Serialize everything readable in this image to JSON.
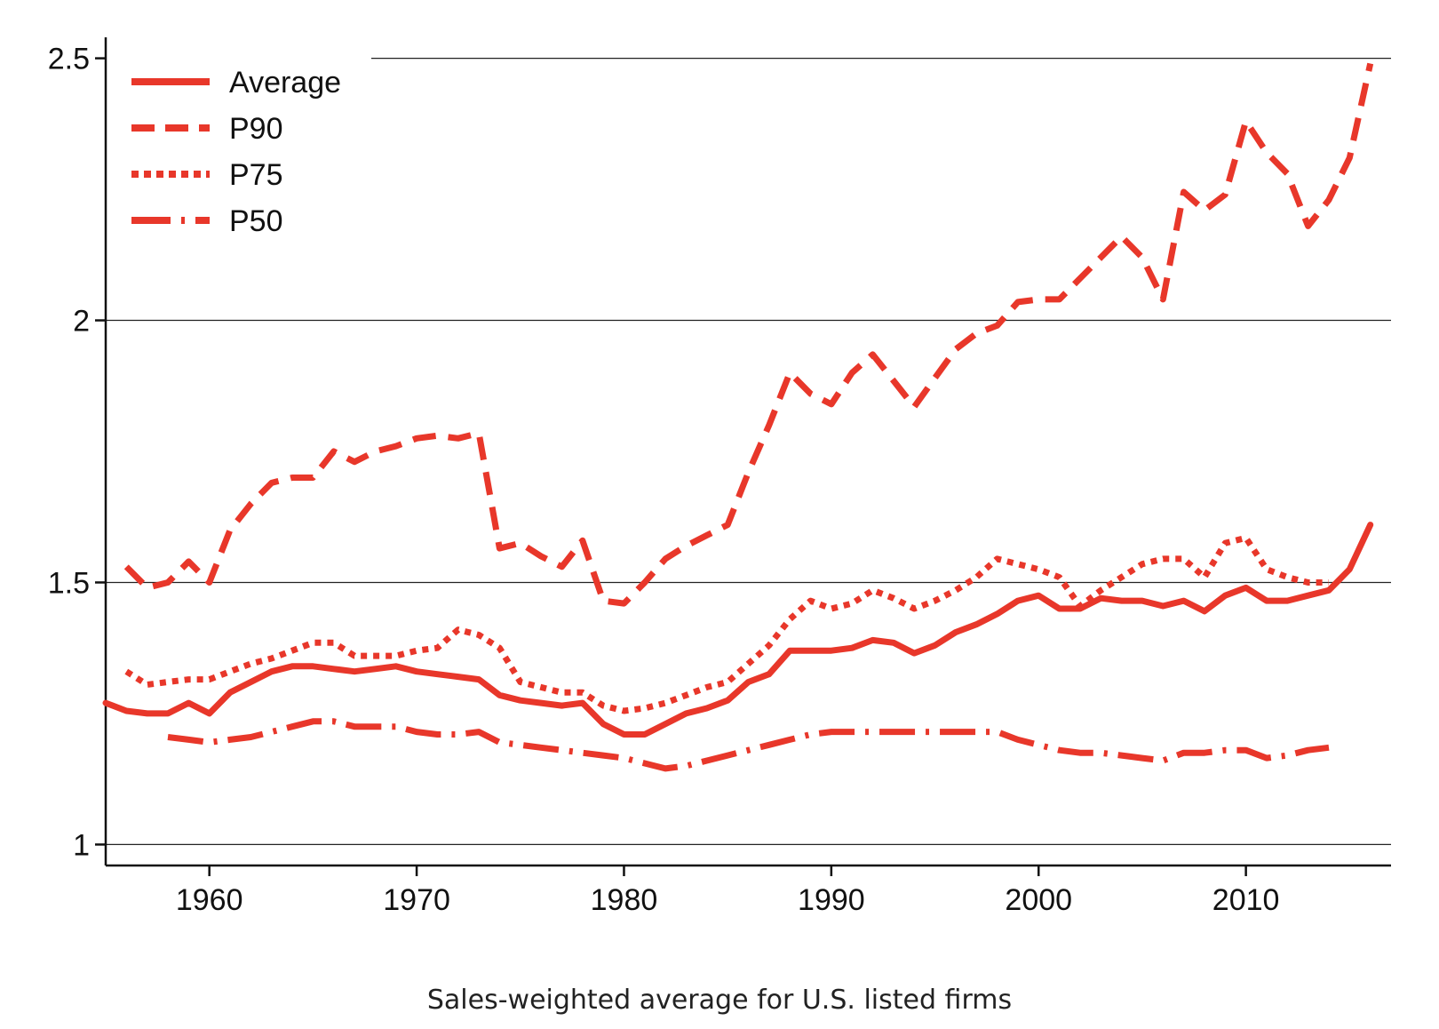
{
  "caption": "Sales-weighted average for U.S. listed firms",
  "chart_data": {
    "type": "line",
    "title": "",
    "xlabel": "",
    "ylabel": "",
    "xlim": [
      1955,
      2017
    ],
    "ylim": [
      0.96,
      2.54
    ],
    "x_ticks": [
      1960,
      1970,
      1980,
      1990,
      2000,
      2010
    ],
    "y_ticks": [
      1,
      1.5,
      2,
      2.5
    ],
    "y_tick_labels": [
      "1",
      "1.5",
      "2",
      "2.5"
    ],
    "grid": "horizontal",
    "legend_position": "top-left",
    "color": "#e8372a",
    "series": [
      {
        "name": "Average",
        "style": "solid",
        "x": [
          1955,
          1956,
          1957,
          1958,
          1959,
          1960,
          1961,
          1962,
          1963,
          1964,
          1965,
          1966,
          1967,
          1968,
          1969,
          1970,
          1971,
          1972,
          1973,
          1974,
          1975,
          1976,
          1977,
          1978,
          1979,
          1980,
          1981,
          1982,
          1983,
          1984,
          1985,
          1986,
          1987,
          1988,
          1989,
          1990,
          1991,
          1992,
          1993,
          1994,
          1995,
          1996,
          1997,
          1998,
          1999,
          2000,
          2001,
          2002,
          2003,
          2004,
          2005,
          2006,
          2007,
          2008,
          2009,
          2010,
          2011,
          2012,
          2013,
          2014,
          2015,
          2016
        ],
        "values": [
          1.27,
          1.255,
          1.25,
          1.25,
          1.27,
          1.25,
          1.29,
          1.31,
          1.33,
          1.34,
          1.34,
          1.335,
          1.33,
          1.335,
          1.34,
          1.33,
          1.325,
          1.32,
          1.315,
          1.285,
          1.275,
          1.27,
          1.265,
          1.27,
          1.23,
          1.21,
          1.21,
          1.23,
          1.25,
          1.26,
          1.275,
          1.31,
          1.325,
          1.37,
          1.37,
          1.37,
          1.375,
          1.39,
          1.385,
          1.365,
          1.38,
          1.405,
          1.42,
          1.44,
          1.465,
          1.475,
          1.45,
          1.45,
          1.47,
          1.465,
          1.465,
          1.455,
          1.465,
          1.445,
          1.475,
          1.49,
          1.465,
          1.465,
          1.475,
          1.485,
          1.525,
          1.61
        ]
      },
      {
        "name": "P90",
        "style": "dash",
        "x": [
          1956,
          1957,
          1958,
          1959,
          1960,
          1961,
          1962,
          1963,
          1964,
          1965,
          1966,
          1967,
          1968,
          1969,
          1970,
          1971,
          1972,
          1973,
          1974,
          1975,
          1976,
          1977,
          1978,
          1979,
          1980,
          1981,
          1982,
          1983,
          1984,
          1985,
          1986,
          1987,
          1988,
          1989,
          1990,
          1991,
          1992,
          1993,
          1994,
          1995,
          1996,
          1997,
          1998,
          1999,
          2000,
          2001,
          2002,
          2003,
          2004,
          2005,
          2006,
          2007,
          2008,
          2009,
          2010,
          2011,
          2012,
          2013,
          2014,
          2015,
          2016
        ],
        "values": [
          1.53,
          1.49,
          1.5,
          1.54,
          1.5,
          1.6,
          1.65,
          1.69,
          1.7,
          1.7,
          1.75,
          1.73,
          1.75,
          1.76,
          1.775,
          1.78,
          1.775,
          1.785,
          1.565,
          1.575,
          1.55,
          1.53,
          1.58,
          1.465,
          1.46,
          1.5,
          1.545,
          1.57,
          1.59,
          1.61,
          1.71,
          1.8,
          1.9,
          1.86,
          1.84,
          1.9,
          1.935,
          1.885,
          1.835,
          1.89,
          1.945,
          1.975,
          1.99,
          2.035,
          2.04,
          2.04,
          2.08,
          2.12,
          2.16,
          2.12,
          2.04,
          2.245,
          2.21,
          2.24,
          2.38,
          2.32,
          2.28,
          2.18,
          2.23,
          2.31,
          2.49
        ]
      },
      {
        "name": "P75",
        "style": "dot",
        "x": [
          1956,
          1957,
          1958,
          1959,
          1960,
          1961,
          1962,
          1963,
          1964,
          1965,
          1966,
          1967,
          1968,
          1969,
          1970,
          1971,
          1972,
          1973,
          1974,
          1975,
          1976,
          1977,
          1978,
          1979,
          1980,
          1981,
          1982,
          1983,
          1984,
          1985,
          1986,
          1987,
          1988,
          1989,
          1990,
          1991,
          1992,
          1993,
          1994,
          1995,
          1996,
          1997,
          1998,
          1999,
          2000,
          2001,
          2002,
          2003,
          2004,
          2005,
          2006,
          2007,
          2008,
          2009,
          2010,
          2011,
          2012,
          2013,
          2014
        ],
        "values": [
          1.33,
          1.305,
          1.31,
          1.315,
          1.315,
          1.33,
          1.345,
          1.355,
          1.37,
          1.385,
          1.385,
          1.36,
          1.36,
          1.36,
          1.37,
          1.375,
          1.41,
          1.4,
          1.375,
          1.31,
          1.3,
          1.29,
          1.29,
          1.265,
          1.255,
          1.26,
          1.27,
          1.285,
          1.3,
          1.31,
          1.345,
          1.38,
          1.43,
          1.465,
          1.45,
          1.46,
          1.485,
          1.47,
          1.45,
          1.465,
          1.485,
          1.51,
          1.545,
          1.535,
          1.525,
          1.51,
          1.455,
          1.485,
          1.51,
          1.535,
          1.545,
          1.545,
          1.51,
          1.575,
          1.585,
          1.525,
          1.51,
          1.5,
          1.5
        ]
      },
      {
        "name": "P50",
        "style": "dashdot",
        "x": [
          1958,
          1959,
          1960,
          1961,
          1962,
          1963,
          1964,
          1965,
          1966,
          1967,
          1968,
          1969,
          1970,
          1971,
          1972,
          1973,
          1974,
          1975,
          1976,
          1977,
          1978,
          1979,
          1980,
          1981,
          1982,
          1983,
          1984,
          1985,
          1986,
          1987,
          1988,
          1989,
          1990,
          1991,
          1992,
          1993,
          1994,
          1995,
          1996,
          1997,
          1998,
          1999,
          2000,
          2001,
          2002,
          2003,
          2004,
          2005,
          2006,
          2007,
          2008,
          2009,
          2010,
          2011,
          2012,
          2013,
          2014
        ],
        "values": [
          1.205,
          1.2,
          1.195,
          1.2,
          1.205,
          1.215,
          1.225,
          1.235,
          1.235,
          1.225,
          1.225,
          1.225,
          1.215,
          1.21,
          1.21,
          1.215,
          1.195,
          1.19,
          1.185,
          1.18,
          1.175,
          1.17,
          1.165,
          1.155,
          1.145,
          1.15,
          1.16,
          1.17,
          1.18,
          1.19,
          1.2,
          1.21,
          1.215,
          1.215,
          1.215,
          1.215,
          1.215,
          1.215,
          1.215,
          1.215,
          1.215,
          1.2,
          1.19,
          1.18,
          1.175,
          1.175,
          1.17,
          1.165,
          1.16,
          1.175,
          1.175,
          1.18,
          1.18,
          1.165,
          1.17,
          1.18,
          1.185
        ]
      }
    ]
  }
}
